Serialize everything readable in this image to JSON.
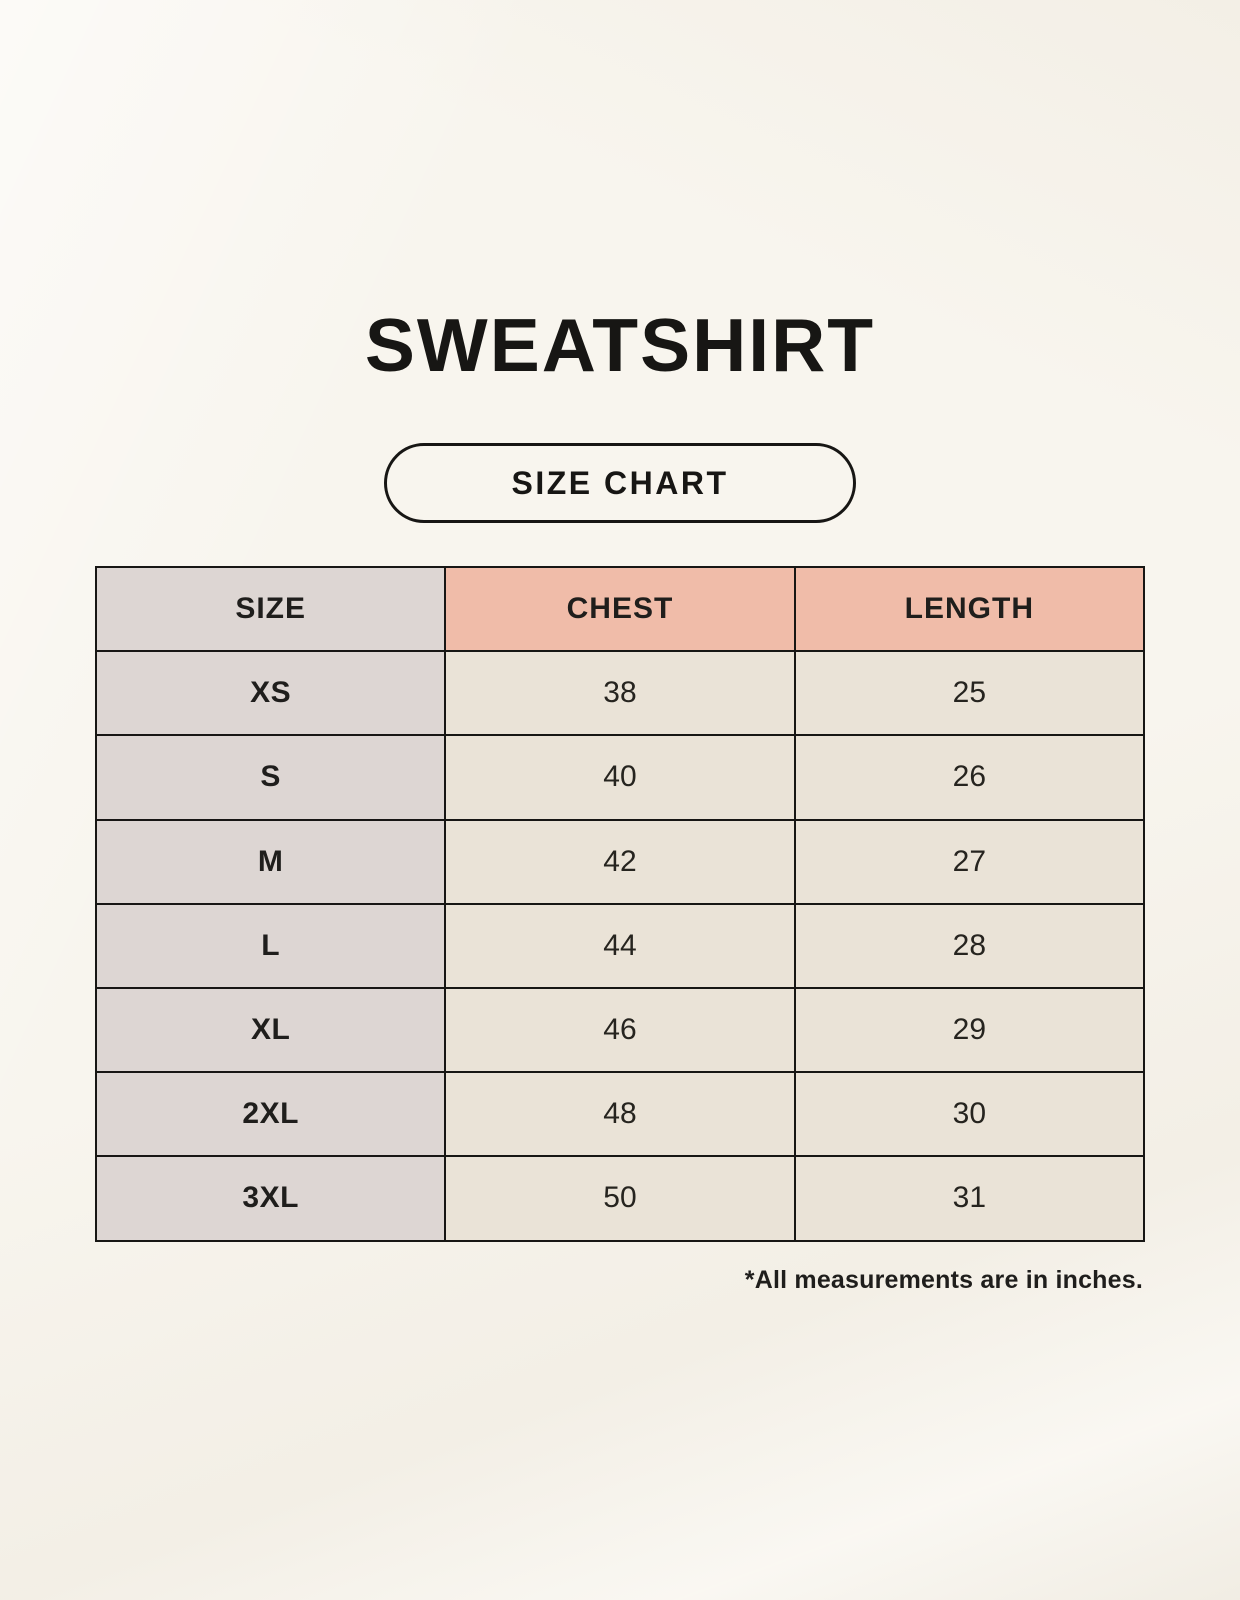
{
  "page": {
    "title": "SWEATSHIRT",
    "badge": "SIZE CHART",
    "footnote": "*All measurements are in inches."
  },
  "colors": {
    "background": "#f8f5ee",
    "accent_header": "#f0bca9",
    "size_column": "#ddd6d3",
    "value_cell": "#eae3d7",
    "border": "#171614",
    "text": "#1f1e1c"
  },
  "chart_data": {
    "type": "table",
    "title": "SWEATSHIRT",
    "subtitle": "SIZE CHART",
    "columns": [
      "SIZE",
      "CHEST",
      "LENGTH"
    ],
    "rows": [
      {
        "size": "XS",
        "chest": "38",
        "length": "25"
      },
      {
        "size": "S",
        "chest": "40",
        "length": "26"
      },
      {
        "size": "M",
        "chest": "42",
        "length": "27"
      },
      {
        "size": "L",
        "chest": "44",
        "length": "28"
      },
      {
        "size": "XL",
        "chest": "46",
        "length": "29"
      },
      {
        "size": "2XL",
        "chest": "48",
        "length": "30"
      },
      {
        "size": "3XL",
        "chest": "50",
        "length": "31"
      }
    ],
    "units": "inches",
    "note": "*All measurements are in inches."
  }
}
